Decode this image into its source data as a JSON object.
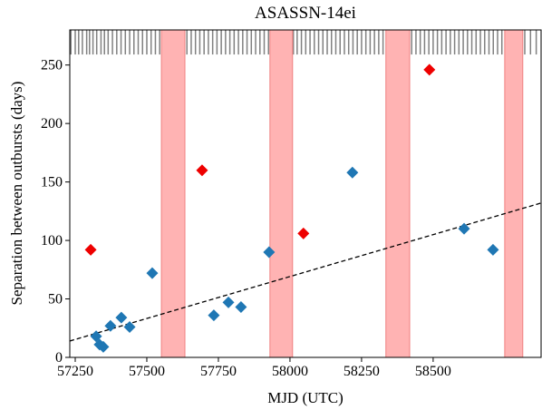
{
  "chart_data": {
    "type": "scatter",
    "title": "ASASSN-14ei",
    "x_label": "MJD (UTC)",
    "y_label": "Separation between outbursts (days)",
    "xlim": [
      57231,
      58877
    ],
    "ylim": [
      0,
      280
    ],
    "xticks": [
      57250,
      57500,
      57750,
      58000,
      58250,
      58500
    ],
    "yticks": [
      0,
      50,
      100,
      150,
      200,
      250
    ],
    "grid": false,
    "series": [
      {
        "color": "#1f77b4",
        "x": [
          57323,
          57335,
          57348,
          57373,
          57411,
          57440,
          57519,
          57734,
          57785,
          57829,
          57927,
          58218,
          58608,
          58709
        ],
        "values": [
          18,
          11,
          9,
          27,
          34,
          26,
          72,
          36,
          47,
          43,
          90,
          158,
          110,
          92
        ]
      },
      {
        "color": "#ee0000",
        "x": [
          57304,
          57693,
          58047,
          58487
        ],
        "values": [
          92,
          160,
          106,
          246
        ]
      }
    ],
    "fit": {
      "color": "#000000",
      "x": [
        57231,
        58877
      ],
      "values": [
        14,
        132
      ]
    },
    "shaded_ranges": {
      "color": "#ffb3b3",
      "ranges": [
        [
          57551,
          57633
        ],
        [
          57930,
          58009
        ],
        [
          58335,
          58418
        ],
        [
          58750,
          58813
        ]
      ]
    },
    "observations": {
      "color": "#808080",
      "ylim": [
        259,
        280
      ],
      "x": [
        57235,
        57250,
        57262,
        57275,
        57290,
        57300,
        57312,
        57325,
        57340,
        57352,
        57365,
        57380,
        57395,
        57410,
        57425,
        57440,
        57455,
        57470,
        57485,
        57500,
        57515,
        57530,
        57545,
        57640,
        57655,
        57670,
        57685,
        57700,
        57715,
        57730,
        57745,
        57760,
        57775,
        57790,
        57805,
        57820,
        57835,
        57850,
        57865,
        57880,
        57895,
        57910,
        57925,
        58012,
        58025,
        58040,
        58055,
        58070,
        58085,
        58100,
        58115,
        58130,
        58145,
        58160,
        58175,
        58190,
        58205,
        58220,
        58235,
        58250,
        58265,
        58280,
        58295,
        58310,
        58325,
        58425,
        58440,
        58455,
        58470,
        58485,
        58500,
        58515,
        58530,
        58545,
        58560,
        58575,
        58590,
        58605,
        58620,
        58635,
        58650,
        58665,
        58680,
        58695,
        58710,
        58725,
        58740,
        58820,
        58840,
        58860
      ]
    }
  }
}
